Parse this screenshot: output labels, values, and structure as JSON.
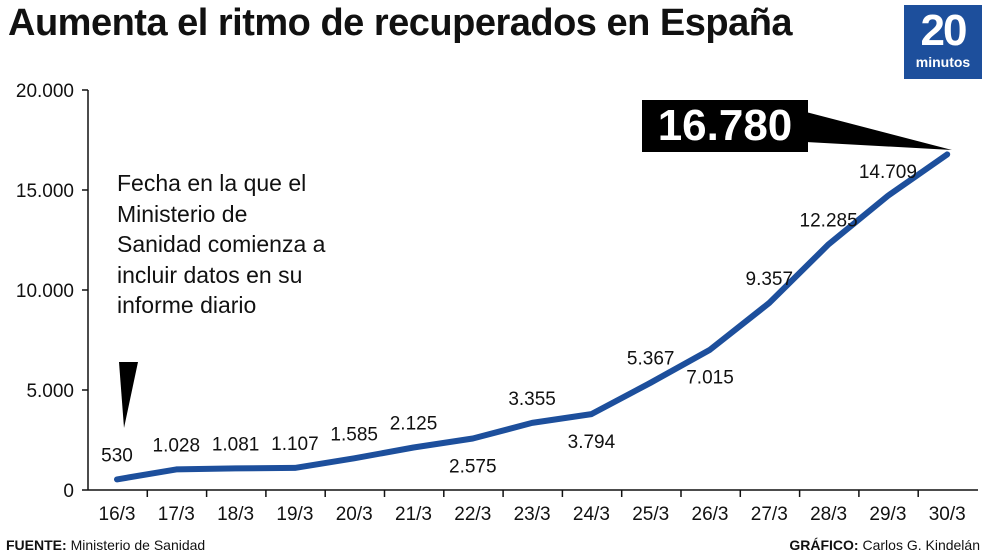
{
  "title": "Aumenta el ritmo de recuperados en España",
  "logo": {
    "number": "20",
    "text": "minutos",
    "color": "#1d4f9c"
  },
  "annotation": "Fecha en la que el Ministerio de Sanidad comienza a incluir datos en su informe diario",
  "highlight": "16.780",
  "footer": {
    "source_label": "FUENTE:",
    "source": "Ministerio de Sanidad",
    "credit_label": "GRÁFICO:",
    "credit": "Carlos G. Kindelán"
  },
  "chart_data": {
    "type": "line",
    "title": "Aumenta el ritmo de recuperados en España",
    "categories": [
      "16/3",
      "17/3",
      "18/3",
      "19/3",
      "20/3",
      "21/3",
      "22/3",
      "23/3",
      "24/3",
      "25/3",
      "26/3",
      "27/3",
      "28/3",
      "29/3",
      "30/3"
    ],
    "values": [
      530,
      1028,
      1081,
      1107,
      1585,
      2125,
      2575,
      3355,
      3794,
      5367,
      7015,
      9357,
      12285,
      14709,
      16780
    ],
    "labels": [
      "530",
      "1.028",
      "1.081",
      "1.107",
      "1.585",
      "2.125",
      "2.575",
      "3.355",
      "3.794",
      "5.367",
      "7.015",
      "9.357",
      "12.285",
      "14.709",
      "16.780"
    ],
    "y_ticks": [
      "0",
      "5.000",
      "10.000",
      "15.000",
      "20.000"
    ],
    "ylim": [
      0,
      20000
    ],
    "line_color": "#1d4f9c",
    "grid": false
  }
}
